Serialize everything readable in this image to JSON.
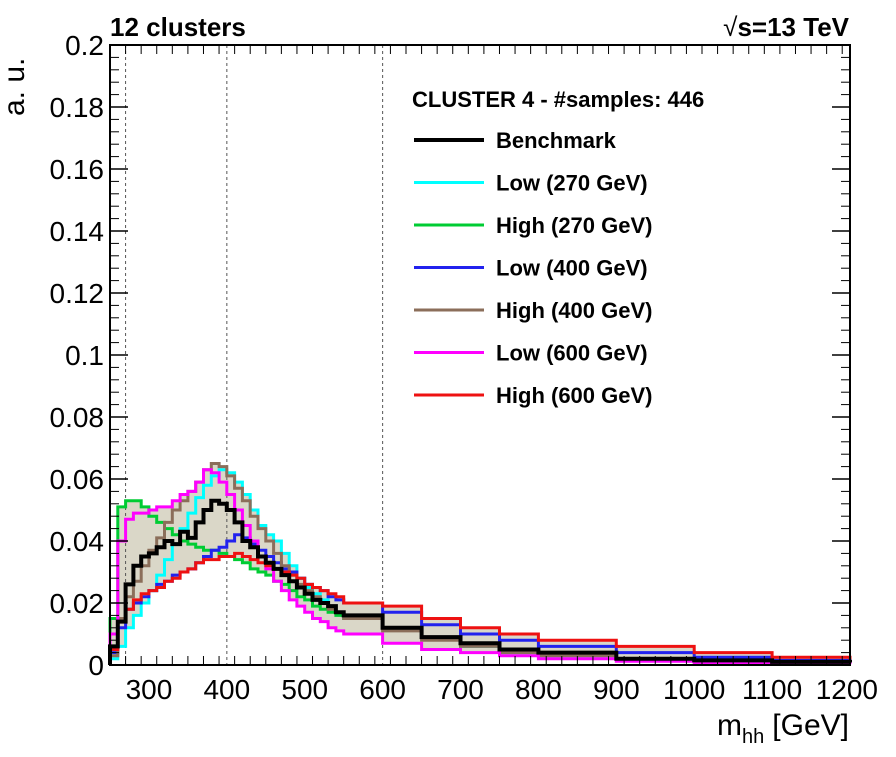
{
  "chart_data": {
    "type": "line",
    "drawstyle": "histogram",
    "header_left": "12 clusters",
    "header_right_prefix": "√",
    "header_right": "s=13 TeV",
    "legend_title": "CLUSTER 4 - #samples: 446",
    "xlabel_main": "m",
    "xlabel_sub": "hh",
    "xlabel_unit": "[GeV]",
    "ylabel": "a. u.",
    "xlim": [
      250,
      1200
    ],
    "ylim": [
      0,
      0.2
    ],
    "x_ticks": [
      300,
      400,
      500,
      600,
      700,
      800,
      900,
      1000,
      1100,
      1200
    ],
    "y_ticks": [
      0,
      0.02,
      0.04,
      0.06,
      0.08,
      0.1,
      0.12,
      0.14,
      0.16,
      0.18,
      0.2
    ],
    "y_tick_labels": [
      "0",
      "0.02",
      "0.04",
      "0.06",
      "0.08",
      "0.1",
      "0.12",
      "0.14",
      "0.16",
      "0.18",
      "0.2"
    ],
    "vlines": [
      270,
      400,
      600
    ],
    "band_color": "#bcb79a",
    "series": [
      {
        "name": "Benchmark",
        "color": "#000000",
        "x": [
          250,
          260,
          270,
          280,
          290,
          300,
          310,
          320,
          330,
          340,
          350,
          360,
          370,
          380,
          390,
          400,
          410,
          420,
          430,
          440,
          450,
          460,
          470,
          480,
          490,
          500,
          510,
          520,
          530,
          540,
          550,
          600,
          650,
          700,
          750,
          800,
          900,
          1000,
          1100,
          1200
        ],
        "values": [
          0.006,
          0.014,
          0.026,
          0.032,
          0.035,
          0.036,
          0.038,
          0.04,
          0.039,
          0.043,
          0.041,
          0.046,
          0.05,
          0.053,
          0.052,
          0.05,
          0.046,
          0.04,
          0.038,
          0.035,
          0.033,
          0.031,
          0.029,
          0.027,
          0.025,
          0.023,
          0.021,
          0.02,
          0.019,
          0.017,
          0.016,
          0.012,
          0.009,
          0.007,
          0.005,
          0.004,
          0.002,
          0.0015,
          0.001,
          0.0008
        ]
      },
      {
        "name": "Low (270 GeV)",
        "color": "#00ffff",
        "x": [
          250,
          260,
          270,
          280,
          290,
          300,
          310,
          320,
          330,
          340,
          350,
          360,
          370,
          380,
          390,
          400,
          410,
          420,
          430,
          440,
          450,
          460,
          470,
          480,
          490,
          500,
          510,
          520,
          530,
          540,
          550,
          600,
          650,
          700,
          750,
          800,
          900,
          1000,
          1100,
          1200
        ],
        "values": [
          0.002,
          0.006,
          0.012,
          0.016,
          0.02,
          0.024,
          0.029,
          0.034,
          0.039,
          0.044,
          0.049,
          0.054,
          0.058,
          0.061,
          0.063,
          0.062,
          0.059,
          0.055,
          0.05,
          0.045,
          0.042,
          0.04,
          0.036,
          0.032,
          0.028,
          0.025,
          0.023,
          0.021,
          0.019,
          0.017,
          0.016,
          0.012,
          0.009,
          0.006,
          0.004,
          0.003,
          0.002,
          0.0012,
          0.0008,
          0.0005
        ]
      },
      {
        "name": "High (270 GeV)",
        "color": "#00cc33",
        "x": [
          250,
          260,
          270,
          280,
          290,
          300,
          310,
          320,
          330,
          340,
          350,
          360,
          370,
          380,
          390,
          400,
          410,
          420,
          430,
          440,
          450,
          460,
          470,
          480,
          490,
          500,
          510,
          520,
          530,
          540,
          550,
          600,
          650,
          700,
          750,
          800,
          900,
          1000,
          1100,
          1200
        ],
        "values": [
          0.015,
          0.051,
          0.053,
          0.053,
          0.051,
          0.048,
          0.046,
          0.044,
          0.042,
          0.04,
          0.039,
          0.038,
          0.037,
          0.037,
          0.036,
          0.035,
          0.034,
          0.033,
          0.031,
          0.03,
          0.029,
          0.027,
          0.026,
          0.024,
          0.022,
          0.021,
          0.019,
          0.018,
          0.017,
          0.016,
          0.015,
          0.012,
          0.009,
          0.007,
          0.005,
          0.004,
          0.002,
          0.0015,
          0.001,
          0.0008
        ]
      },
      {
        "name": "Low (400 GeV)",
        "color": "#2222ee",
        "x": [
          250,
          260,
          270,
          280,
          290,
          300,
          310,
          320,
          330,
          340,
          350,
          360,
          370,
          380,
          390,
          400,
          410,
          420,
          430,
          440,
          450,
          460,
          470,
          480,
          490,
          500,
          510,
          520,
          530,
          540,
          550,
          600,
          650,
          700,
          750,
          800,
          900,
          1000,
          1100,
          1200
        ],
        "values": [
          0.004,
          0.012,
          0.018,
          0.02,
          0.022,
          0.024,
          0.026,
          0.027,
          0.029,
          0.03,
          0.031,
          0.033,
          0.035,
          0.037,
          0.038,
          0.04,
          0.042,
          0.041,
          0.039,
          0.037,
          0.035,
          0.033,
          0.031,
          0.03,
          0.028,
          0.026,
          0.025,
          0.024,
          0.022,
          0.021,
          0.02,
          0.017,
          0.013,
          0.01,
          0.008,
          0.006,
          0.004,
          0.0025,
          0.0015,
          0.001
        ]
      },
      {
        "name": "High (400 GeV)",
        "color": "#8b6e5a",
        "x": [
          250,
          260,
          270,
          280,
          290,
          300,
          310,
          320,
          330,
          340,
          350,
          360,
          370,
          380,
          390,
          400,
          410,
          420,
          430,
          440,
          450,
          460,
          470,
          480,
          490,
          500,
          510,
          520,
          530,
          540,
          550,
          600,
          650,
          700,
          750,
          800,
          900,
          1000,
          1100,
          1200
        ],
        "values": [
          0.003,
          0.015,
          0.022,
          0.027,
          0.032,
          0.037,
          0.041,
          0.046,
          0.05,
          0.053,
          0.056,
          0.059,
          0.063,
          0.065,
          0.064,
          0.061,
          0.057,
          0.053,
          0.048,
          0.044,
          0.04,
          0.036,
          0.032,
          0.029,
          0.026,
          0.024,
          0.022,
          0.02,
          0.018,
          0.017,
          0.015,
          0.011,
          0.008,
          0.006,
          0.004,
          0.003,
          0.002,
          0.0012,
          0.0008,
          0.0005
        ]
      },
      {
        "name": "Low (600 GeV)",
        "color": "#ff00ff",
        "x": [
          250,
          260,
          270,
          280,
          290,
          300,
          310,
          320,
          330,
          340,
          350,
          360,
          370,
          380,
          390,
          400,
          410,
          420,
          430,
          440,
          450,
          460,
          470,
          480,
          490,
          500,
          510,
          520,
          530,
          540,
          550,
          600,
          650,
          700,
          750,
          800,
          900,
          1000,
          1100,
          1200
        ],
        "values": [
          0.01,
          0.04,
          0.047,
          0.049,
          0.049,
          0.05,
          0.051,
          0.051,
          0.053,
          0.055,
          0.056,
          0.059,
          0.063,
          0.062,
          0.059,
          0.055,
          0.05,
          0.045,
          0.04,
          0.035,
          0.031,
          0.027,
          0.024,
          0.021,
          0.019,
          0.017,
          0.015,
          0.014,
          0.012,
          0.011,
          0.01,
          0.007,
          0.005,
          0.004,
          0.003,
          0.002,
          0.0012,
          0.0008,
          0.0005,
          0.0003
        ]
      },
      {
        "name": "High (600 GeV)",
        "color": "#ee1111",
        "x": [
          250,
          260,
          270,
          280,
          290,
          300,
          310,
          320,
          330,
          340,
          350,
          360,
          370,
          380,
          390,
          400,
          410,
          420,
          430,
          440,
          450,
          460,
          470,
          480,
          490,
          500,
          510,
          520,
          530,
          540,
          550,
          600,
          650,
          700,
          750,
          800,
          900,
          1000,
          1100,
          1200
        ],
        "values": [
          0.005,
          0.014,
          0.018,
          0.021,
          0.023,
          0.024,
          0.025,
          0.027,
          0.028,
          0.03,
          0.031,
          0.033,
          0.034,
          0.034,
          0.035,
          0.035,
          0.036,
          0.035,
          0.034,
          0.033,
          0.032,
          0.031,
          0.03,
          0.029,
          0.028,
          0.026,
          0.025,
          0.024,
          0.023,
          0.022,
          0.02,
          0.019,
          0.015,
          0.012,
          0.01,
          0.008,
          0.006,
          0.004,
          0.0025,
          0.0018
        ]
      }
    ]
  }
}
